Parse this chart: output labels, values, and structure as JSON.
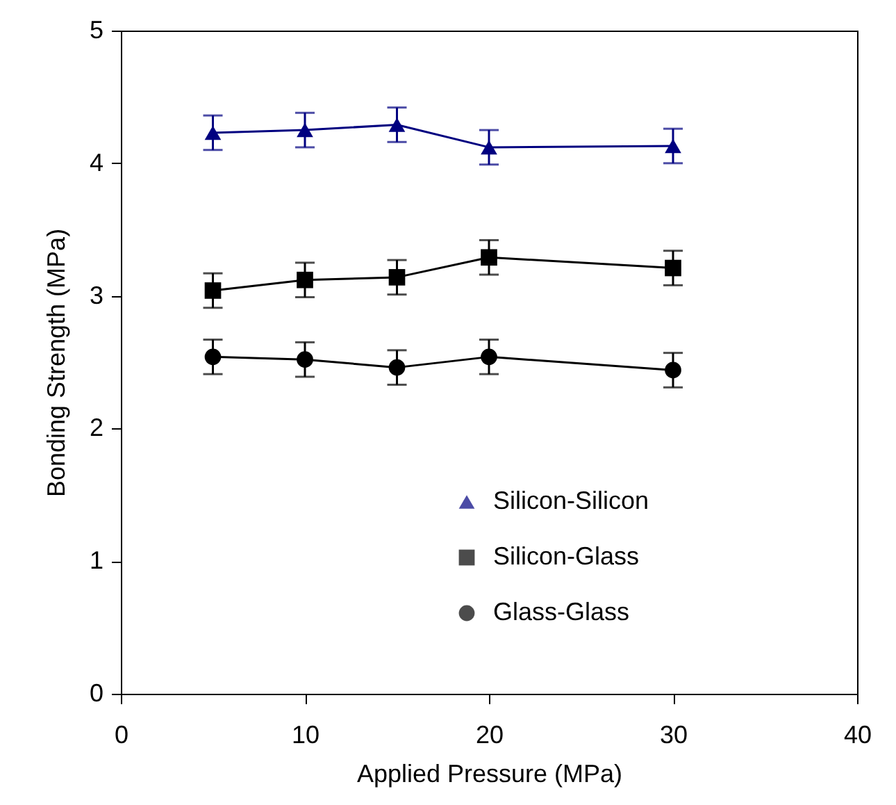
{
  "chart_data": {
    "type": "line",
    "xlabel": "Applied Pressure (MPa)",
    "ylabel": "Bonding Strength (MPa)",
    "x": [
      5,
      10,
      15,
      20,
      30
    ],
    "series": [
      {
        "name": "Silicon-Silicon",
        "color": "#000080",
        "marker": "triangle",
        "values": [
          4.23,
          4.25,
          4.29,
          4.12,
          4.13
        ],
        "errors": [
          0.13,
          0.13,
          0.13,
          0.13,
          0.13
        ]
      },
      {
        "name": "Silicon-Glass",
        "color": "#000000",
        "marker": "square",
        "values": [
          3.04,
          3.12,
          3.14,
          3.29,
          3.21
        ],
        "errors": [
          0.13,
          0.13,
          0.13,
          0.13,
          0.13
        ]
      },
      {
        "name": "Glass-Glass",
        "color": "#000000",
        "marker": "circle",
        "values": [
          2.54,
          2.52,
          2.46,
          2.54,
          2.44
        ],
        "errors": [
          0.13,
          0.13,
          0.13,
          0.13,
          0.13
        ]
      }
    ],
    "xlim": [
      0,
      40
    ],
    "xticks": [
      0,
      10,
      20,
      30,
      40
    ],
    "ylim": [
      0,
      5
    ],
    "yticks": [
      0,
      1,
      2,
      3,
      4,
      5
    ],
    "grid": false,
    "legend": "bottom right",
    "line_style": "solid"
  }
}
